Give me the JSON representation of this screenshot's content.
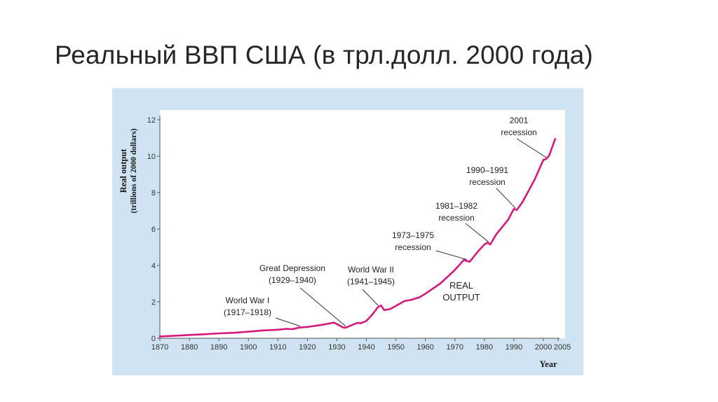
{
  "slide": {
    "title": "Реальный ВВП США (в трл.долл. 2000 года)"
  },
  "chart_data": {
    "type": "line",
    "ylabel": "Real output",
    "ylabel_sub": "(trillions of 2000 dollars)",
    "xlabel": "Year",
    "xlim": [
      1870,
      2005
    ],
    "ylim": [
      0,
      12
    ],
    "xticks": [
      1870,
      1880,
      1890,
      1900,
      1910,
      1920,
      1930,
      1940,
      1950,
      1960,
      1970,
      1980,
      1990,
      2000,
      2005
    ],
    "yticks": [
      0,
      2,
      4,
      6,
      8,
      10,
      12
    ],
    "grid": false,
    "line_color": "#d6197a",
    "series": [
      {
        "name": "REAL OUTPUT",
        "x": [
          1870,
          1875,
          1880,
          1885,
          1890,
          1895,
          1900,
          1905,
          1910,
          1913,
          1915,
          1917,
          1918,
          1920,
          1925,
          1929,
          1930,
          1932,
          1933,
          1935,
          1937,
          1938,
          1940,
          1942,
          1944,
          1945,
          1946,
          1948,
          1950,
          1953,
          1955,
          1958,
          1960,
          1965,
          1970,
          1973,
          1974,
          1975,
          1978,
          1980,
          1981,
          1982,
          1984,
          1988,
          1990,
          1991,
          1993,
          1997,
          2000,
          2001,
          2002,
          2004
        ],
        "y": [
          0.1,
          0.14,
          0.18,
          0.22,
          0.27,
          0.3,
          0.36,
          0.43,
          0.47,
          0.52,
          0.5,
          0.58,
          0.6,
          0.62,
          0.74,
          0.86,
          0.78,
          0.6,
          0.58,
          0.72,
          0.85,
          0.82,
          0.95,
          1.3,
          1.72,
          1.8,
          1.55,
          1.6,
          1.78,
          2.05,
          2.1,
          2.25,
          2.45,
          3.0,
          3.75,
          4.3,
          4.25,
          4.2,
          4.8,
          5.15,
          5.25,
          5.15,
          5.7,
          6.5,
          7.1,
          7.05,
          7.5,
          8.7,
          9.8,
          9.85,
          10.05,
          10.95
        ]
      }
    ],
    "annotations": [
      {
        "lines": [
          "World War I",
          "(1917–1918)"
        ],
        "x": 1917.5
      },
      {
        "lines": [
          "Great Depression",
          "(1929–1940)"
        ],
        "x": 1933
      },
      {
        "lines": [
          "World War II",
          "(1941–1945)"
        ],
        "x": 1944
      },
      {
        "lines": [
          "1973–1975",
          "recession"
        ],
        "x": 1974
      },
      {
        "lines": [
          "1981–1982",
          "recession"
        ],
        "x": 1981.5
      },
      {
        "lines": [
          "1990–1991",
          "recession"
        ],
        "x": 1990.5
      },
      {
        "lines": [
          "2001",
          "recession"
        ],
        "x": 2001
      }
    ],
    "series_label": [
      "REAL",
      "OUTPUT"
    ]
  }
}
